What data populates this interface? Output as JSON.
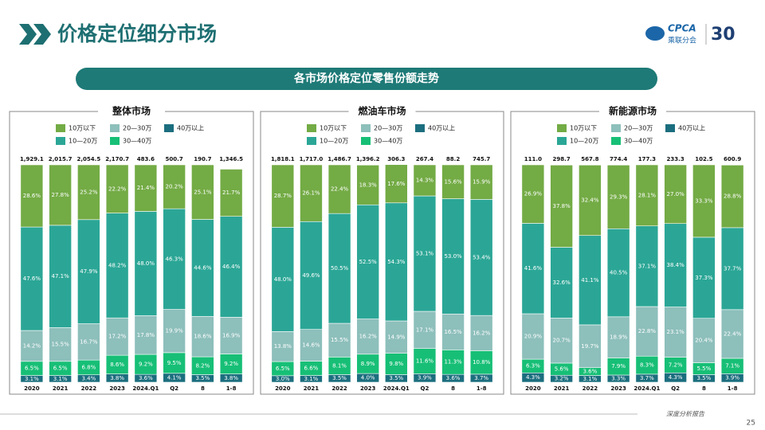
{
  "header": {
    "title": "价格定位细分市场",
    "logo": "CPCA",
    "logo_sub": "乘联分会",
    "anniversary": "30"
  },
  "banner": "各市场价格定位零售份额走势",
  "footer": {
    "text": "深度分析报告",
    "page": "25"
  },
  "chart_data": [
    {
      "type": "stacked-bar",
      "title": "整体市场",
      "ylim": [
        0,
        100
      ],
      "categories": [
        "2020",
        "2021",
        "2022",
        "2023",
        "2024.Q1",
        "Q2",
        "8",
        "1-8"
      ],
      "totals": {
        "values": [
          1929.1,
          2015.7,
          2054.5,
          2170.7,
          483.6,
          500.7,
          190.7,
          1346.5
        ],
        "value_labels": [
          "1,929.1",
          "2,015.7",
          "2,054.5",
          "2,170.7",
          "483.6",
          "500.7",
          "190.7",
          "1,346.5"
        ]
      },
      "series": [
        {
          "name": "10万以下",
          "color": "#73ab45",
          "values": [
            28.6,
            27.8,
            25.2,
            22.2,
            21.4,
            20.2,
            25.1,
            21.7
          ],
          "value_labels": [
            "28.6%",
            "27.8%",
            "25.2%",
            "22.2%",
            "21.4%",
            "20.2%",
            "25.1%",
            "21.7%"
          ]
        },
        {
          "name": "10—20万",
          "color": "#2ba696",
          "values": [
            47.6,
            47.1,
            47.9,
            48.2,
            48.0,
            46.3,
            44.6,
            46.4
          ],
          "value_labels": [
            "47.6%",
            "47.1%",
            "47.9%",
            "48.2%",
            "48.0%",
            "46.3%",
            "44.6%",
            "46.4%"
          ]
        },
        {
          "name": "20—30万",
          "color": "#8dbfbb",
          "values": [
            14.2,
            15.5,
            16.7,
            17.2,
            17.8,
            19.9,
            18.6,
            16.9
          ],
          "value_labels": [
            "14.2%",
            "15.5%",
            "16.7%",
            "17.2%",
            "17.8%",
            "19.9%",
            "18.6%",
            "16.9%"
          ]
        },
        {
          "name": "30—40万",
          "color": "#17bf76",
          "values": [
            6.5,
            6.5,
            6.8,
            8.6,
            9.2,
            9.5,
            8.2,
            9.2
          ],
          "value_labels": [
            "6.5%",
            "6.5%",
            "6.8%",
            "8.6%",
            "9.2%",
            "9.5%",
            "8.2%",
            "9.2%"
          ]
        },
        {
          "name": "40万以上",
          "color": "#1b6e7e",
          "values": [
            3.1,
            3.1,
            3.4,
            3.8,
            3.6,
            4.1,
            3.5,
            3.8
          ],
          "value_labels": [
            "3.1%",
            "3.1%",
            "3.4%",
            "3.8%",
            "3.6%",
            "4.1%",
            "3.5%",
            "3.8%"
          ]
        }
      ]
    },
    {
      "type": "stacked-bar",
      "title": "燃油车市场",
      "ylim": [
        0,
        100
      ],
      "categories": [
        "2020",
        "2021",
        "2022",
        "2023",
        "2024.Q1",
        "Q2",
        "8",
        "1-8"
      ],
      "totals": {
        "values": [
          1818.1,
          1717.0,
          1486.7,
          1396.2,
          306.3,
          267.4,
          88.2,
          745.7
        ],
        "value_labels": [
          "1,818.1",
          "1,717.0",
          "1,486.7",
          "1,396.2",
          "306.3",
          "267.4",
          "88.2",
          "745.7"
        ]
      },
      "series": [
        {
          "name": "10万以下",
          "color": "#73ab45",
          "values": [
            28.7,
            26.1,
            22.4,
            18.3,
            17.6,
            14.3,
            15.6,
            15.9
          ],
          "value_labels": [
            "28.7%",
            "26.1%",
            "22.4%",
            "18.3%",
            "17.6%",
            "14.3%",
            "15.6%",
            "15.9%"
          ]
        },
        {
          "name": "10—20万",
          "color": "#2ba696",
          "values": [
            48.0,
            49.6,
            50.5,
            52.5,
            54.3,
            53.1,
            53.0,
            53.4
          ],
          "value_labels": [
            "48.0%",
            "49.6%",
            "50.5%",
            "52.5%",
            "54.3%",
            "53.1%",
            "53.0%",
            "53.4%"
          ]
        },
        {
          "name": "20—30万",
          "color": "#8dbfbb",
          "values": [
            13.8,
            14.6,
            15.5,
            16.2,
            14.9,
            17.1,
            16.5,
            16.2
          ],
          "value_labels": [
            "13.8%",
            "14.6%",
            "15.5%",
            "16.2%",
            "14.9%",
            "17.1%",
            "16.5%",
            "16.2%"
          ]
        },
        {
          "name": "30—40万",
          "color": "#17bf76",
          "values": [
            6.5,
            6.6,
            8.1,
            8.9,
            9.8,
            11.6,
            11.3,
            10.8
          ],
          "value_labels": [
            "6.5%",
            "6.6%",
            "8.1%",
            "8.9%",
            "9.8%",
            "11.6%",
            "11.3%",
            "10.8%"
          ]
        },
        {
          "name": "40万以上",
          "color": "#1b6e7e",
          "values": [
            3.0,
            3.1,
            3.5,
            4.0,
            3.5,
            3.9,
            3.6,
            3.7
          ],
          "value_labels": [
            "3.0%",
            "3.1%",
            "3.5%",
            "4.0%",
            "3.5%",
            "3.9%",
            "3.6%",
            "3.7%"
          ]
        }
      ]
    },
    {
      "type": "stacked-bar",
      "title": "新能源市场",
      "ylim": [
        0,
        100
      ],
      "categories": [
        "2020",
        "2021",
        "2022",
        "2023",
        "2024.Q1",
        "Q2",
        "8",
        "1-8"
      ],
      "totals": {
        "values": [
          111.0,
          298.7,
          567.8,
          774.4,
          177.3,
          233.3,
          102.5,
          600.9
        ],
        "value_labels": [
          "111.0",
          "298.7",
          "567.8",
          "774.4",
          "177.3",
          "233.3",
          "102.5",
          "600.9"
        ]
      },
      "series": [
        {
          "name": "10万以下",
          "color": "#73ab45",
          "values": [
            26.9,
            37.8,
            32.4,
            29.3,
            28.1,
            27.0,
            33.3,
            28.8
          ],
          "value_labels": [
            "26.9%",
            "37.8%",
            "32.4%",
            "29.3%",
            "28.1%",
            "27.0%",
            "33.3%",
            "28.8%"
          ]
        },
        {
          "name": "10—20万",
          "color": "#2ba696",
          "values": [
            41.6,
            32.6,
            41.1,
            40.5,
            37.1,
            38.4,
            37.3,
            37.7
          ],
          "value_labels": [
            "41.6%",
            "32.6%",
            "41.1%",
            "40.5%",
            "37.1%",
            "38.4%",
            "37.3%",
            "37.7%"
          ]
        },
        {
          "name": "20—30万",
          "color": "#8dbfbb",
          "values": [
            20.9,
            20.7,
            19.7,
            18.9,
            22.8,
            23.1,
            20.4,
            22.4
          ],
          "value_labels": [
            "20.9%",
            "20.7%",
            "19.7%",
            "18.9%",
            "22.8%",
            "23.1%",
            "20.4%",
            "22.4%"
          ]
        },
        {
          "name": "30—40万",
          "color": "#17bf76",
          "values": [
            6.3,
            5.6,
            3.6,
            7.9,
            8.3,
            7.2,
            5.5,
            7.1
          ],
          "value_labels": [
            "6.3%",
            "5.6%",
            "3.6%",
            "7.9%",
            "8.3%",
            "7.2%",
            "5.5%",
            "7.1%"
          ]
        },
        {
          "name": "40万以上",
          "color": "#1b6e7e",
          "values": [
            4.3,
            3.2,
            3.1,
            3.3,
            3.7,
            4.3,
            3.5,
            3.9
          ],
          "value_labels": [
            "4.3%",
            "3.2%",
            "3.1%",
            "3.3%",
            "3.7%",
            "4.3%",
            "3.5%",
            "3.9%"
          ]
        }
      ]
    }
  ]
}
